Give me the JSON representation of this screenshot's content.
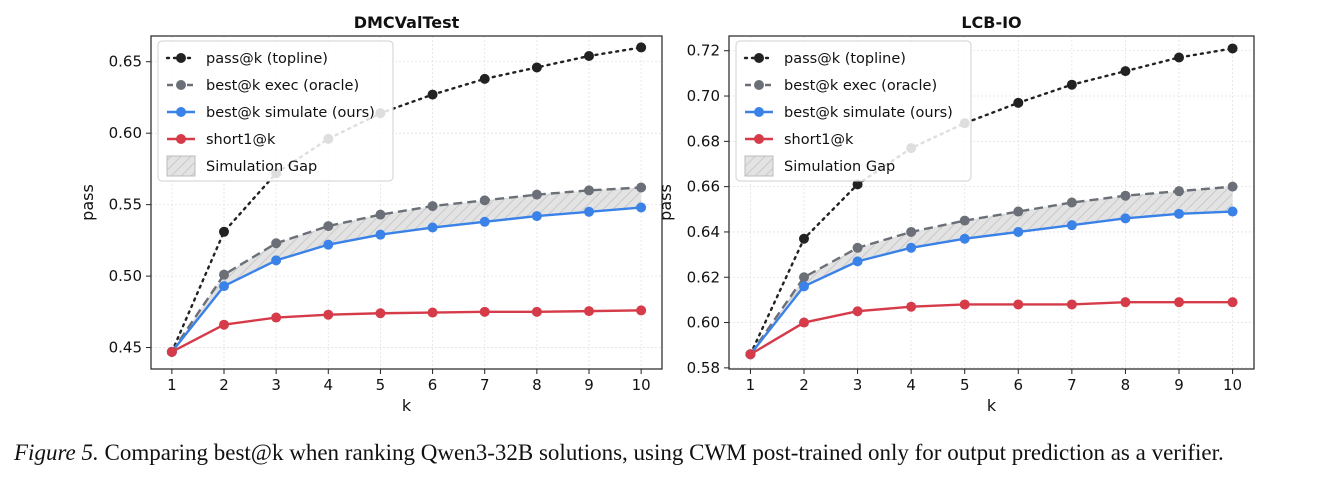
{
  "chart_data": [
    {
      "type": "line",
      "title": "DMCValTest",
      "xlabel": "k",
      "ylabel": "pass",
      "x": [
        1,
        2,
        3,
        4,
        5,
        6,
        7,
        8,
        9,
        10
      ],
      "xticks": [
        "1",
        "2",
        "3",
        "4",
        "5",
        "6",
        "7",
        "8",
        "9",
        "10"
      ],
      "ylim": [
        0.435,
        0.668
      ],
      "yticks": [
        0.45,
        0.5,
        0.55,
        0.6,
        0.65
      ],
      "ytick_labels": [
        "0.45",
        "0.50",
        "0.55",
        "0.60",
        "0.65"
      ],
      "grid": true,
      "legend_position": "top-left",
      "series": [
        {
          "name": "pass@k (topline)",
          "style": "dotted",
          "color": "#222222",
          "values": [
            0.447,
            0.531,
            0.572,
            0.596,
            0.614,
            0.627,
            0.638,
            0.646,
            0.654,
            0.66
          ]
        },
        {
          "name": "best@k exec (oracle)",
          "style": "dashed",
          "color": "#6b7078",
          "values": [
            0.447,
            0.501,
            0.523,
            0.535,
            0.543,
            0.549,
            0.553,
            0.557,
            0.56,
            0.562
          ]
        },
        {
          "name": "best@k simulate (ours)",
          "style": "solid",
          "color": "#3b82e8",
          "values": [
            0.447,
            0.493,
            0.511,
            0.522,
            0.529,
            0.534,
            0.538,
            0.542,
            0.545,
            0.548
          ]
        },
        {
          "name": "short1@k",
          "style": "solid",
          "color": "#d63b4a",
          "values": [
            0.447,
            0.466,
            0.471,
            0.473,
            0.474,
            0.4745,
            0.475,
            0.475,
            0.4755,
            0.476
          ]
        }
      ],
      "shaded_region": {
        "name": "Simulation Gap",
        "between": [
          "best@k simulate (ours)",
          "best@k exec (oracle)"
        ],
        "color": "#d9d9d9"
      }
    },
    {
      "type": "line",
      "title": "LCB-IO",
      "xlabel": "k",
      "ylabel": "pass",
      "x": [
        1,
        2,
        3,
        4,
        5,
        6,
        7,
        8,
        9,
        10
      ],
      "xticks": [
        "1",
        "2",
        "3",
        "4",
        "5",
        "6",
        "7",
        "8",
        "9",
        "10"
      ],
      "ylim": [
        0.5795,
        0.7265
      ],
      "yticks": [
        0.58,
        0.6,
        0.62,
        0.64,
        0.66,
        0.68,
        0.7,
        0.72
      ],
      "ytick_labels": [
        "0.58",
        "0.60",
        "0.62",
        "0.64",
        "0.66",
        "0.68",
        "0.70",
        "0.72"
      ],
      "grid": true,
      "legend_position": "top-left",
      "series": [
        {
          "name": "pass@k (topline)",
          "style": "dotted",
          "color": "#222222",
          "values": [
            0.586,
            0.637,
            0.661,
            0.677,
            0.688,
            0.697,
            0.705,
            0.711,
            0.717,
            0.721
          ]
        },
        {
          "name": "best@k exec (oracle)",
          "style": "dashed",
          "color": "#6b7078",
          "values": [
            0.586,
            0.62,
            0.633,
            0.64,
            0.645,
            0.649,
            0.653,
            0.656,
            0.658,
            0.66
          ]
        },
        {
          "name": "best@k simulate (ours)",
          "style": "solid",
          "color": "#3b82e8",
          "values": [
            0.586,
            0.616,
            0.627,
            0.633,
            0.637,
            0.64,
            0.643,
            0.646,
            0.648,
            0.649
          ]
        },
        {
          "name": "short1@k",
          "style": "solid",
          "color": "#d63b4a",
          "values": [
            0.586,
            0.6,
            0.605,
            0.607,
            0.608,
            0.608,
            0.608,
            0.609,
            0.609,
            0.609
          ]
        }
      ],
      "shaded_region": {
        "name": "Simulation Gap",
        "between": [
          "best@k simulate (ours)",
          "best@k exec (oracle)"
        ],
        "color": "#d9d9d9"
      }
    }
  ],
  "caption": {
    "label": "Figure 5.",
    "text": " Comparing best@k when ranking Qwen3-32B solutions, using CWM post-trained only for output prediction as a verifier."
  }
}
